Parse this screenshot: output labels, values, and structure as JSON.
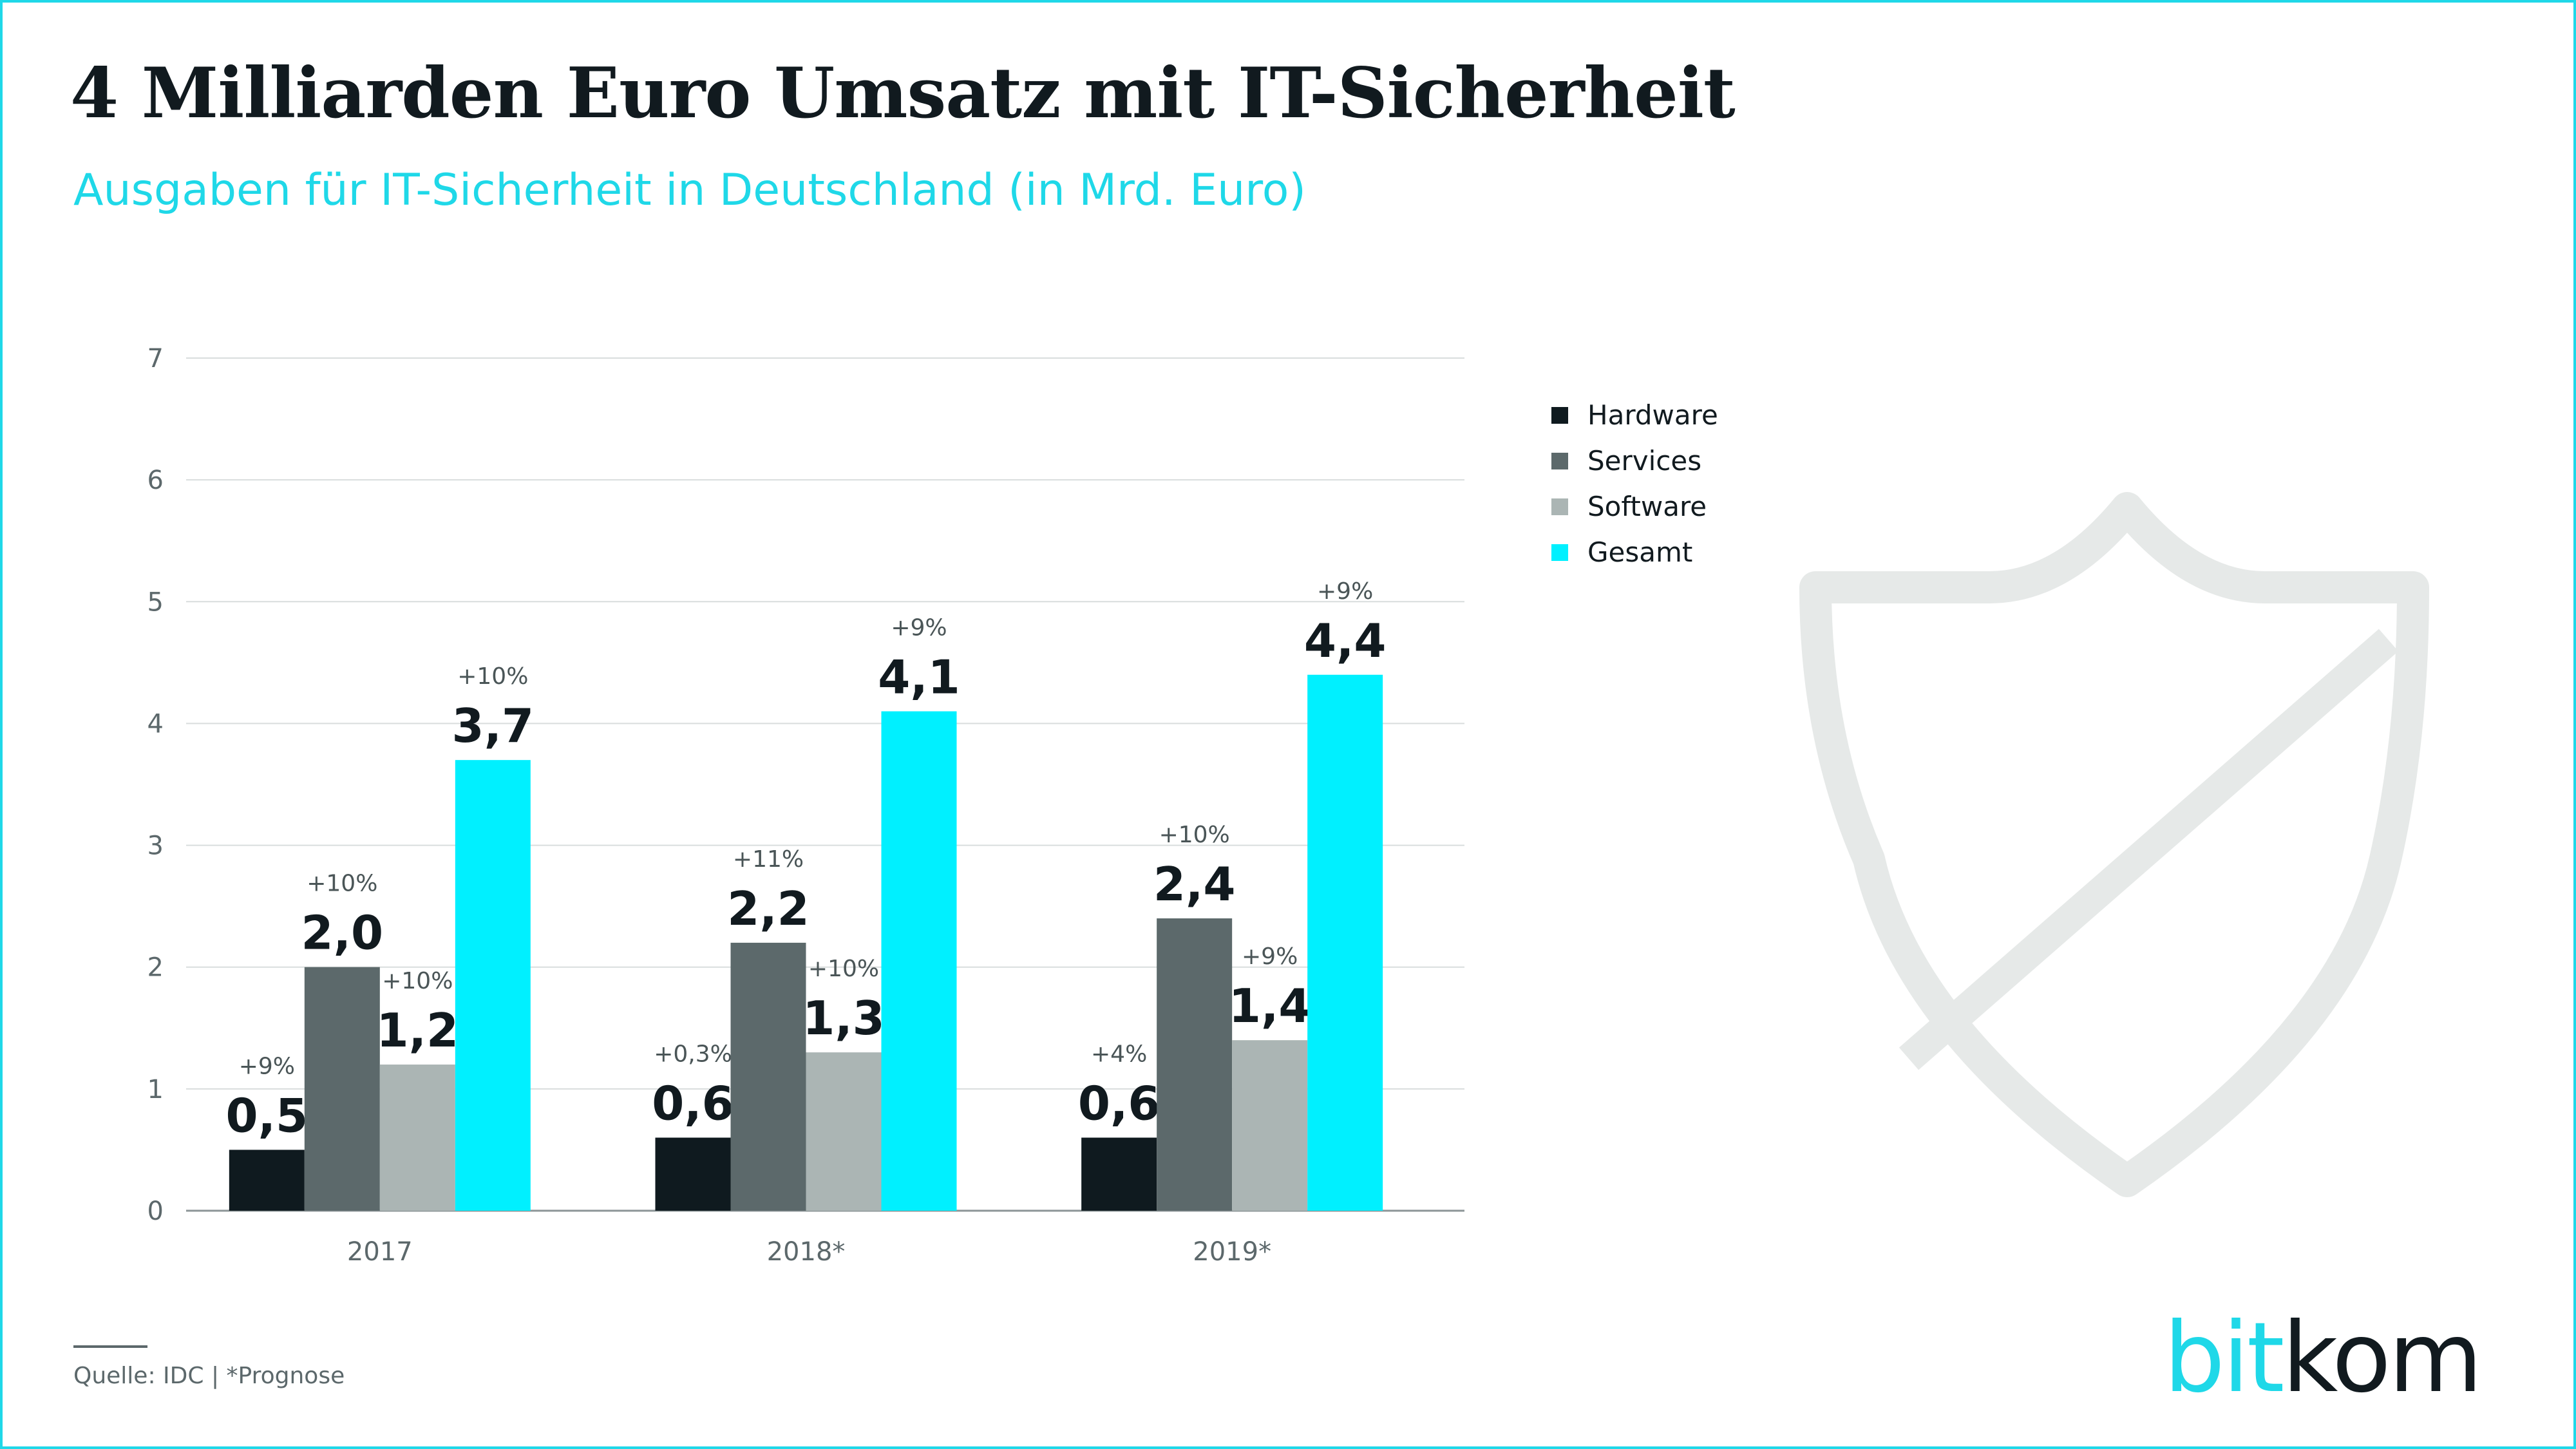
{
  "header": {
    "title": "4 Milliarden Euro Umsatz mit IT-Sicherheit",
    "subtitle": "Ausgaben für IT-Sicherheit in Deutschland (in Mrd. Euro)"
  },
  "chart_data": {
    "type": "bar",
    "title": "4 Milliarden Euro Umsatz mit IT-Sicherheit",
    "subtitle": "Ausgaben für IT-Sicherheit in Deutschland (in Mrd. Euro)",
    "categories": [
      "2017",
      "2018*",
      "2019*"
    ],
    "series": [
      {
        "name": "Hardware",
        "color": "#0f1a1f",
        "values": [
          0.5,
          0.6,
          0.6
        ],
        "labels": [
          "0,5",
          "0,6",
          "0,6"
        ],
        "growth": [
          "+9%",
          "+0,3%",
          "+4%"
        ]
      },
      {
        "name": "Services",
        "color": "#5c696b",
        "values": [
          2.0,
          2.2,
          2.4
        ],
        "labels": [
          "2,0",
          "2,2",
          "2,4"
        ],
        "growth": [
          "+10%",
          "+11%",
          "+10%"
        ]
      },
      {
        "name": "Software",
        "color": "#abb5b4",
        "values": [
          1.2,
          1.3,
          1.4
        ],
        "labels": [
          "1,2",
          "1,3",
          "1,4"
        ],
        "growth": [
          "+10%",
          "+10%",
          "+9%"
        ]
      },
      {
        "name": "Gesamt",
        "color": "#00f0ff",
        "values": [
          3.7,
          4.1,
          4.4
        ],
        "labels": [
          "3,7",
          "4,1",
          "4,4"
        ],
        "growth": [
          "+10%",
          "+9%",
          "+9%"
        ]
      }
    ],
    "ylim": [
      0,
      7
    ],
    "yticks": [
      "0",
      "1",
      "2",
      "3",
      "4",
      "5",
      "6",
      "7"
    ],
    "grid": true,
    "legend_position": "right"
  },
  "footer": {
    "source": "Quelle: IDC | *Prognose"
  },
  "logo": {
    "part1": "bit",
    "part2": "kom"
  },
  "decoration": {
    "shield_icon": "shield-icon",
    "shield_color": "#e6e9e8"
  }
}
